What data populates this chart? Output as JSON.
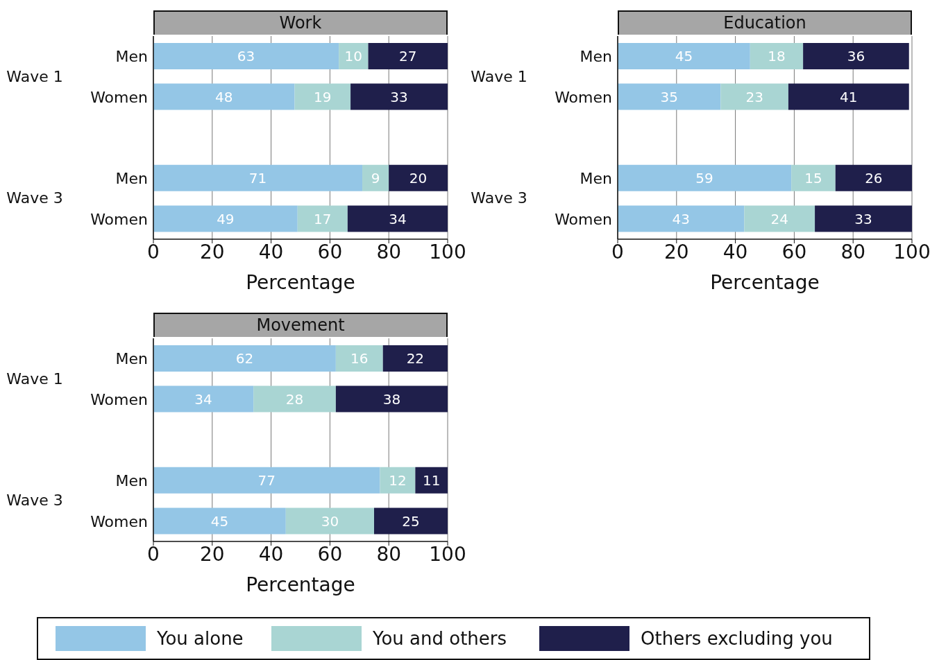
{
  "chart_data": [
    {
      "type": "bar",
      "orientation": "horizontal",
      "stacked": true,
      "title": "Work",
      "xlabel": "Percentage",
      "categories": [
        "Men",
        "Women",
        null,
        "Men",
        "Women"
      ],
      "annotations": [
        "Wave 1",
        "Wave 3"
      ],
      "xlim": [
        0,
        100
      ],
      "xticks": [
        0,
        20,
        40,
        60,
        80,
        100
      ],
      "grid": "x",
      "data_labels": true,
      "legend": "bottom",
      "series": [
        {
          "name": "You alone",
          "color": "#94c6e6",
          "values": [
            63,
            48,
            null,
            71,
            49
          ]
        },
        {
          "name": "You and others",
          "color": "#a9d5d3",
          "values": [
            10,
            19,
            null,
            9,
            17
          ]
        },
        {
          "name": "Others excluding you",
          "color": "#1f1f4b",
          "values": [
            27,
            33,
            null,
            20,
            34
          ]
        }
      ]
    },
    {
      "type": "bar",
      "orientation": "horizontal",
      "stacked": true,
      "title": "Education",
      "xlabel": "Percentage",
      "categories": [
        "Men",
        "Women",
        null,
        "Men",
        "Women"
      ],
      "annotations": [
        "Wave 1",
        "Wave 3"
      ],
      "xlim": [
        0,
        100
      ],
      "xticks": [
        0,
        20,
        40,
        60,
        80,
        100
      ],
      "grid": "x",
      "data_labels": true,
      "series": [
        {
          "color": "#94c6e6",
          "values": [
            45,
            35,
            null,
            59,
            43
          ]
        },
        {
          "color": "#a9d5d3",
          "values": [
            18,
            23,
            null,
            15,
            24
          ]
        },
        {
          "color": "#1f1f4b",
          "values": [
            36,
            41,
            null,
            26,
            33
          ]
        }
      ]
    },
    {
      "type": "bar",
      "orientation": "horizontal",
      "stacked": true,
      "title": "Movement",
      "xlabel": "Percentage",
      "categories": [
        "Men",
        "Women",
        null,
        "Men",
        "Women"
      ],
      "annotations": [
        "Wave 1",
        "Wave 3"
      ],
      "xlim": [
        0,
        100
      ],
      "xticks": [
        0,
        20,
        40,
        60,
        80,
        100
      ],
      "grid": "x",
      "data_labels": true,
      "series": [
        {
          "color": "#94c6e6",
          "values": [
            62,
            34,
            null,
            77,
            45
          ]
        },
        {
          "color": "#a9d5d3",
          "values": [
            16,
            28,
            null,
            12,
            30
          ]
        },
        {
          "color": "#1f1f4b",
          "values": [
            22,
            38,
            null,
            11,
            25
          ]
        }
      ]
    }
  ]
}
